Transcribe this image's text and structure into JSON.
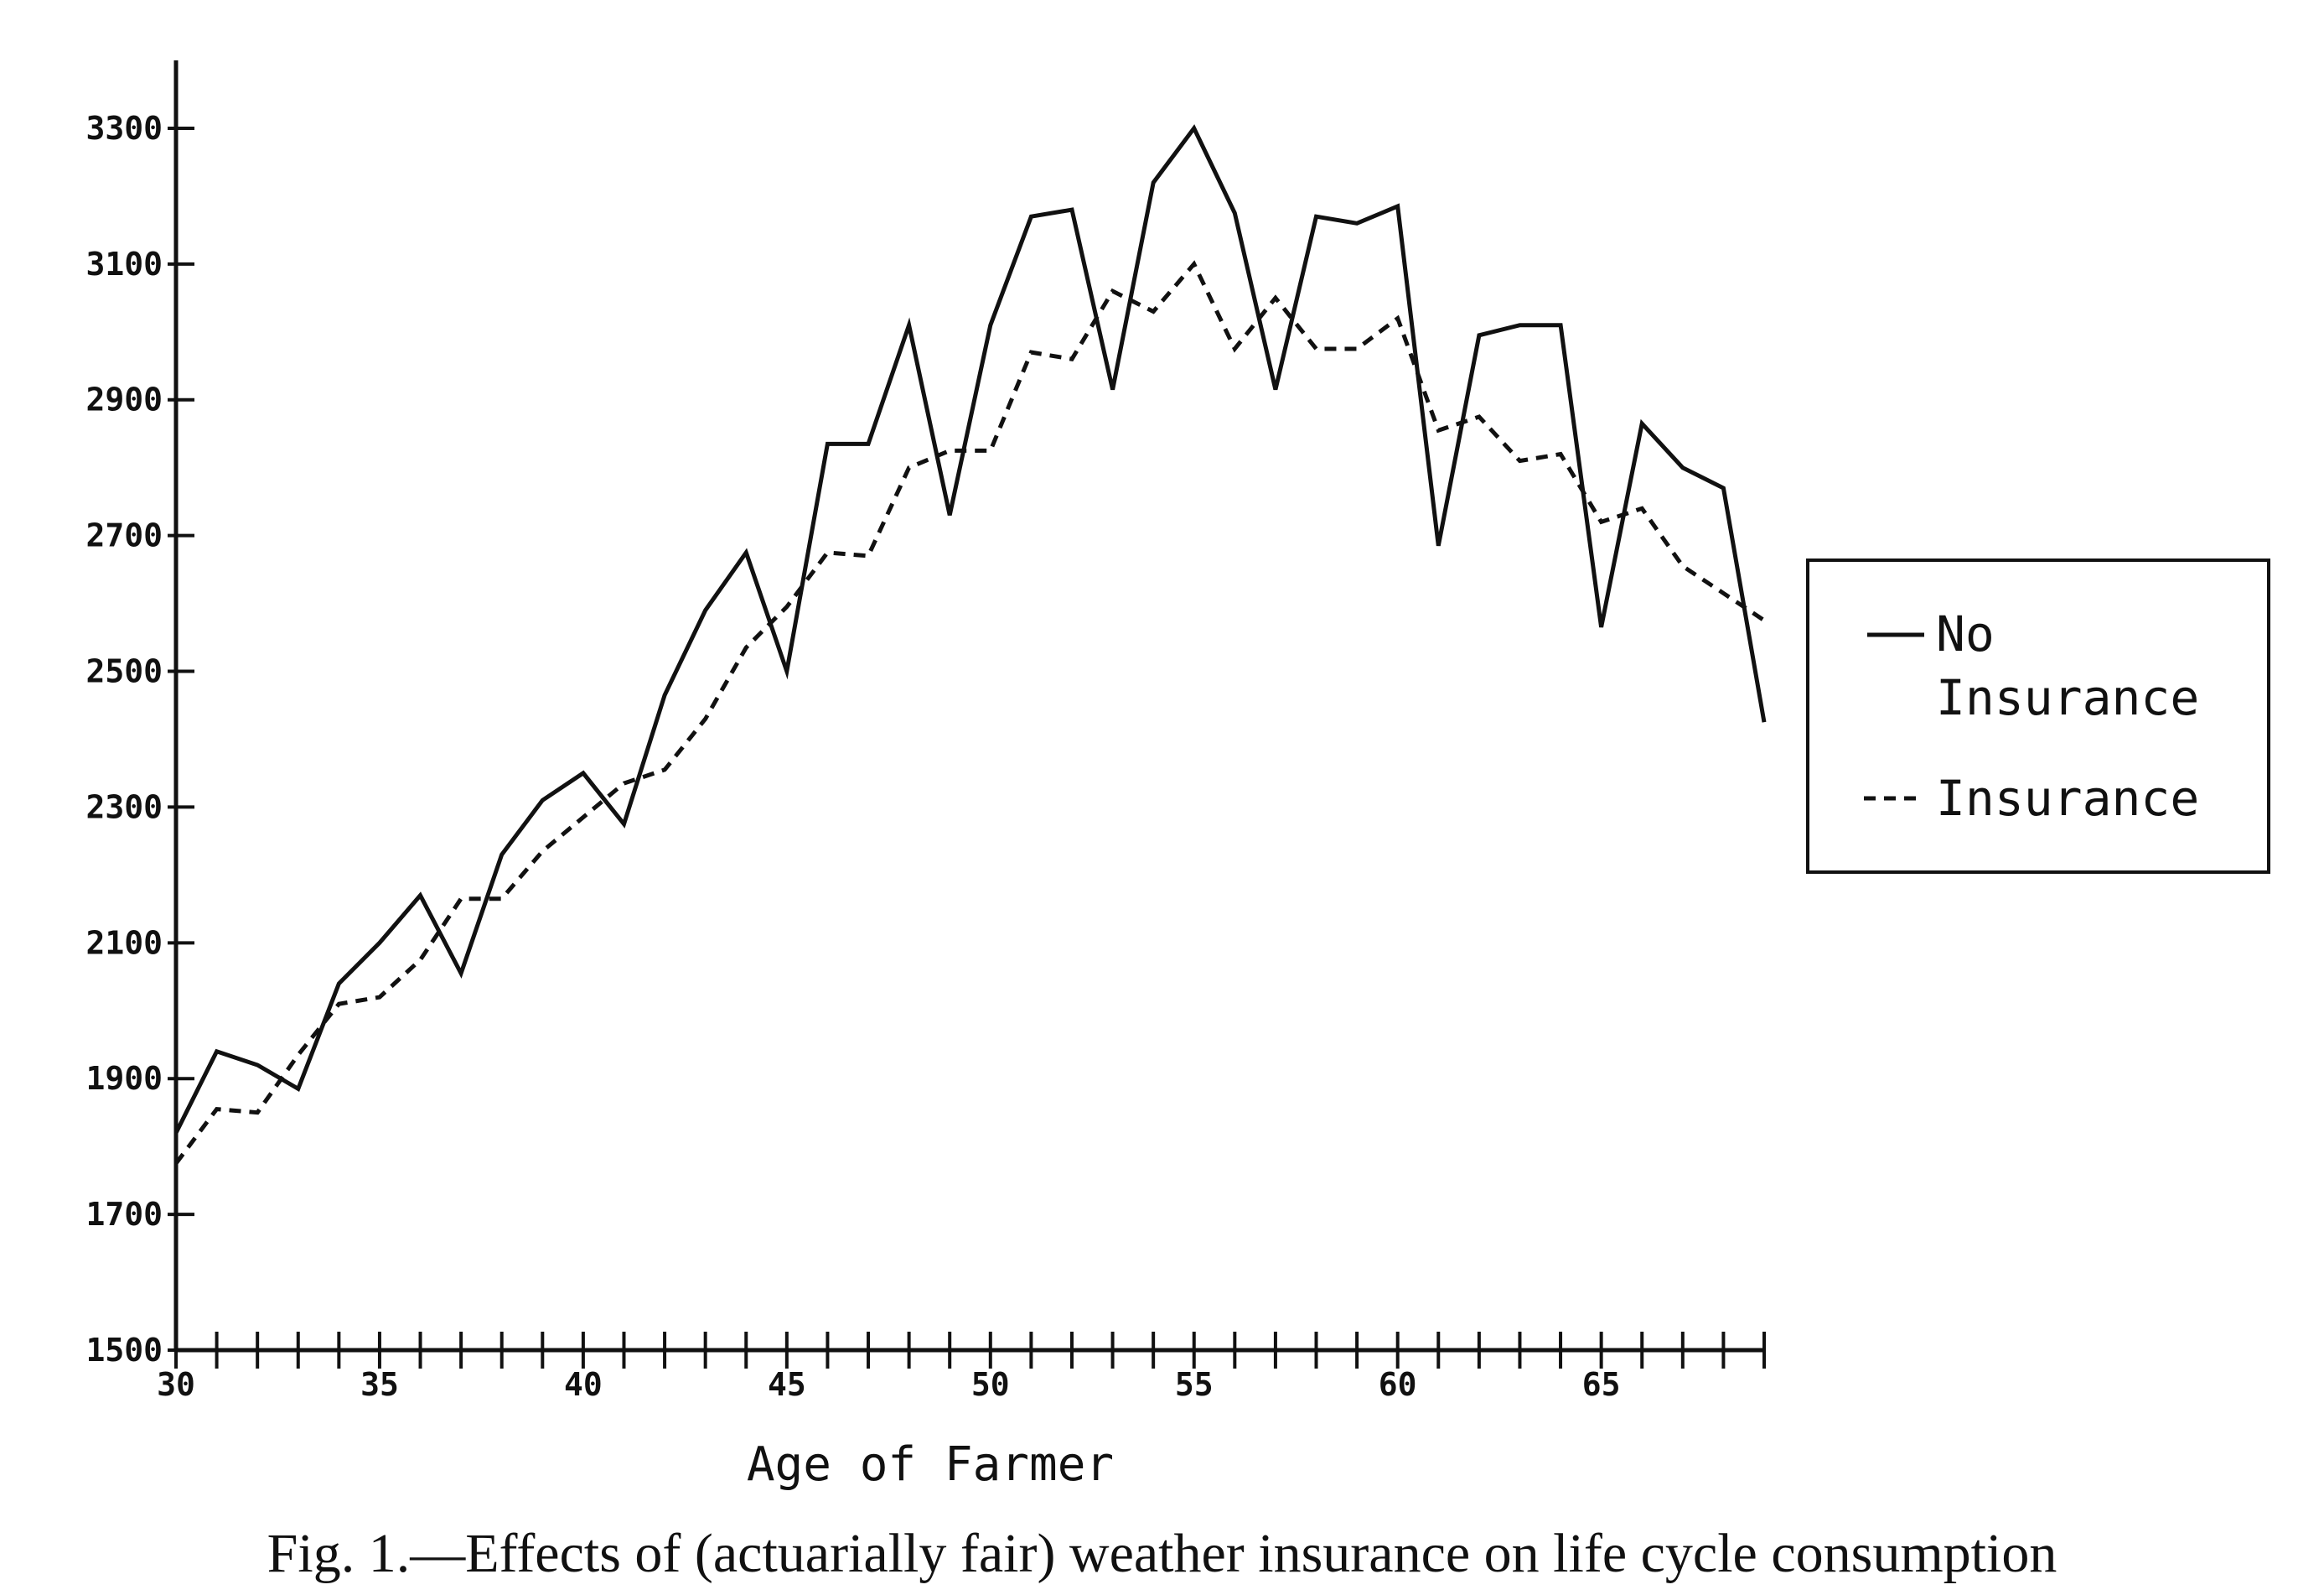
{
  "caption": "Fig. 1.—Effects of (actuarially fair) weather insurance on life cycle consumption",
  "chart_data": {
    "type": "line",
    "xlabel": "Age of Farmer",
    "ylabel": "",
    "xlim": [
      30,
      69
    ],
    "ylim": [
      1500,
      3400
    ],
    "x_ticks": [
      30,
      35,
      40,
      45,
      50,
      55,
      60,
      65
    ],
    "x_minor_ticks_every": 1,
    "y_ticks": [
      1500,
      1700,
      1900,
      2100,
      2300,
      2500,
      2700,
      2900,
      3100,
      3300
    ],
    "legend_position": "right",
    "x": [
      30,
      31,
      32,
      33,
      34,
      35,
      36,
      37,
      38,
      39,
      40,
      41,
      42,
      43,
      44,
      45,
      46,
      47,
      48,
      49,
      50,
      51,
      52,
      53,
      54,
      55,
      56,
      57,
      58,
      59,
      60,
      61,
      62,
      63,
      64,
      65,
      66,
      67,
      68,
      69
    ],
    "series": [
      {
        "name": "No Insurance",
        "style": "solid",
        "values": [
          1820,
          1940,
          1920,
          1885,
          2040,
          2100,
          2170,
          2055,
          2230,
          2310,
          2350,
          2275,
          2465,
          2590,
          2675,
          2500,
          2835,
          2835,
          3010,
          2730,
          3010,
          3170,
          3180,
          2915,
          3220,
          3300,
          3175,
          2915,
          3170,
          3160,
          3185,
          2685,
          2995,
          3010,
          3010,
          2565,
          2865,
          2800,
          2770,
          2425
        ]
      },
      {
        "name": "Insurance",
        "style": "dashed",
        "values": [
          1775,
          1855,
          1850,
          1935,
          2010,
          2020,
          2075,
          2165,
          2165,
          2235,
          2285,
          2335,
          2355,
          2430,
          2535,
          2595,
          2675,
          2670,
          2800,
          2825,
          2825,
          2970,
          2960,
          3060,
          3030,
          3100,
          2975,
          3050,
          2975,
          2975,
          3020,
          2855,
          2875,
          2810,
          2820,
          2720,
          2740,
          2655,
          2615,
          2575
        ]
      }
    ]
  }
}
